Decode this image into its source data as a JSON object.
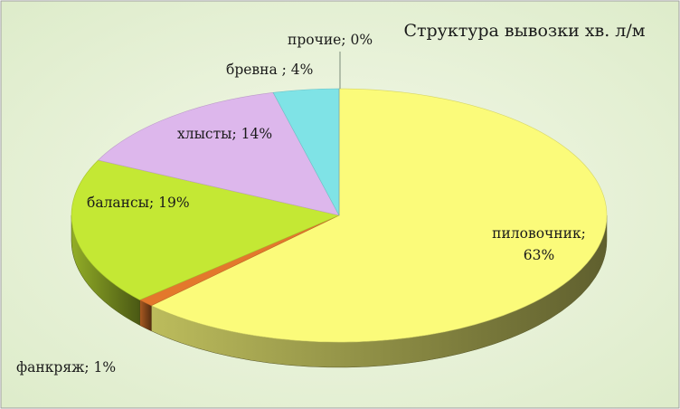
{
  "chart_data": {
    "type": "pie",
    "title": "Структура вывозки хв. л/м",
    "style": "3d",
    "slices": [
      {
        "key": "pilovochnik",
        "label": "пиловочник;",
        "pct_text": "63%",
        "value": 63,
        "color": "#FBFB7A"
      },
      {
        "key": "fankryazh",
        "label": "фанкряж; 1%",
        "value": 1,
        "color": "#E3782C"
      },
      {
        "key": "balansy",
        "label": "балансы; 19%",
        "value": 19,
        "color": "#C4E834"
      },
      {
        "key": "khlysty",
        "label": "хлысты; 14%",
        "value": 14,
        "color": "#DDB7EC"
      },
      {
        "key": "brevna",
        "label": "бревна ; 4%",
        "value": 4,
        "color": "#7FE3E6"
      },
      {
        "key": "prochie",
        "label": "прочие; 0%",
        "value": 0,
        "color": "#9DBFBF"
      }
    ]
  },
  "colors": {
    "background_inner": "#F3F8E8",
    "background_outer": "#DCEBC8",
    "frame": "#9E9E9E"
  }
}
